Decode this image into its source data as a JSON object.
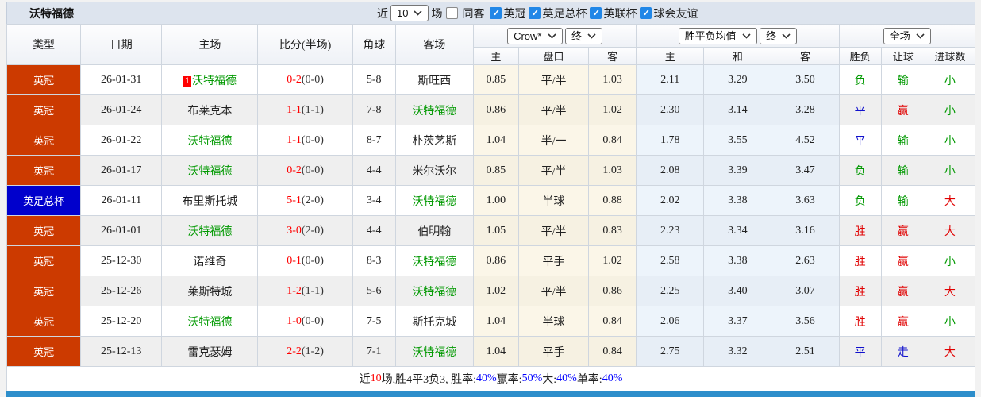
{
  "title": "沃特福德",
  "top_controls": {
    "recent_label": "近",
    "recent_value": "10",
    "matches_label": "场",
    "same_away": {
      "label": "同客",
      "checked": false
    },
    "filters": [
      {
        "label": "英冠",
        "checked": true
      },
      {
        "label": "英足总杯",
        "checked": true
      },
      {
        "label": "英联杯",
        "checked": true
      },
      {
        "label": "球会友谊",
        "checked": true
      }
    ]
  },
  "colors": {
    "league_red": "#cc3a00",
    "league_blue": "#0000cc",
    "team_green": "#009900",
    "score_red": "#ff0000",
    "result_win_red": "#e00000",
    "result_draw_blue": "#1111cc",
    "result_lose_green": "#009900",
    "percent_blue": "#0000ff",
    "checkbox_blue": "#2187e7",
    "bottom_bar": "#2d8ecb",
    "handicap_bg": "#fbf6e8",
    "avg_bg": "#edf4fb"
  },
  "result_color_map": {
    "胜": "result_win_red",
    "赢": "result_win_red",
    "大": "result_win_red",
    "平": "result_draw_blue",
    "走": "result_draw_blue",
    "负": "result_lose_green",
    "输": "result_lose_green",
    "小": "result_lose_green"
  },
  "table": {
    "left_headers": [
      "类型",
      "日期",
      "主场",
      "比分(半场)",
      "角球",
      "客场"
    ],
    "dropdowns": {
      "company": "Crow*",
      "stage1": "终",
      "avg_type": "胜平负均值",
      "stage2": "终",
      "scope": "全场"
    },
    "sub_headers": [
      "主",
      "盘口",
      "客",
      "主",
      "和",
      "客",
      "胜负",
      "让球",
      "进球数"
    ],
    "rows": [
      {
        "league": "英冠",
        "league_type": "red",
        "date": "26-01-31",
        "home": "沃特福德",
        "home_is_team": true,
        "home_rank": "1",
        "score": "0-2",
        "half": "(0-0)",
        "corners": "5-8",
        "away": "斯旺西",
        "away_is_team": false,
        "handicap": [
          "0.85",
          "平/半",
          "1.03"
        ],
        "avg": [
          "2.11",
          "3.29",
          "3.50"
        ],
        "results": [
          "负",
          "输",
          "小"
        ]
      },
      {
        "league": "英冠",
        "league_type": "red",
        "date": "26-01-24",
        "home": "布莱克本",
        "home_is_team": false,
        "home_rank": "",
        "score": "1-1",
        "half": "(1-1)",
        "corners": "7-8",
        "away": "沃特福德",
        "away_is_team": true,
        "handicap": [
          "0.86",
          "平/半",
          "1.02"
        ],
        "avg": [
          "2.30",
          "3.14",
          "3.28"
        ],
        "results": [
          "平",
          "赢",
          "小"
        ]
      },
      {
        "league": "英冠",
        "league_type": "red",
        "date": "26-01-22",
        "home": "沃特福德",
        "home_is_team": true,
        "home_rank": "",
        "score": "1-1",
        "half": "(0-0)",
        "corners": "8-7",
        "away": "朴茨茅斯",
        "away_is_team": false,
        "handicap": [
          "1.04",
          "半/一",
          "0.84"
        ],
        "avg": [
          "1.78",
          "3.55",
          "4.52"
        ],
        "results": [
          "平",
          "输",
          "小"
        ]
      },
      {
        "league": "英冠",
        "league_type": "red",
        "date": "26-01-17",
        "home": "沃特福德",
        "home_is_team": true,
        "home_rank": "",
        "score": "0-2",
        "half": "(0-0)",
        "corners": "4-4",
        "away": "米尔沃尔",
        "away_is_team": false,
        "handicap": [
          "0.85",
          "平/半",
          "1.03"
        ],
        "avg": [
          "2.08",
          "3.39",
          "3.47"
        ],
        "results": [
          "负",
          "输",
          "小"
        ]
      },
      {
        "league": "英足总杯",
        "league_type": "blue",
        "date": "26-01-11",
        "home": "布里斯托城",
        "home_is_team": false,
        "home_rank": "",
        "score": "5-1",
        "half": "(2-0)",
        "corners": "3-4",
        "away": "沃特福德",
        "away_is_team": true,
        "handicap": [
          "1.00",
          "半球",
          "0.88"
        ],
        "avg": [
          "2.02",
          "3.38",
          "3.63"
        ],
        "results": [
          "负",
          "输",
          "大"
        ]
      },
      {
        "league": "英冠",
        "league_type": "red",
        "date": "26-01-01",
        "home": "沃特福德",
        "home_is_team": true,
        "home_rank": "",
        "score": "3-0",
        "half": "(2-0)",
        "corners": "4-4",
        "away": "伯明翰",
        "away_is_team": false,
        "handicap": [
          "1.05",
          "平/半",
          "0.83"
        ],
        "avg": [
          "2.23",
          "3.34",
          "3.16"
        ],
        "results": [
          "胜",
          "赢",
          "大"
        ]
      },
      {
        "league": "英冠",
        "league_type": "red",
        "date": "25-12-30",
        "home": "诺维奇",
        "home_is_team": false,
        "home_rank": "",
        "score": "0-1",
        "half": "(0-0)",
        "corners": "8-3",
        "away": "沃特福德",
        "away_is_team": true,
        "handicap": [
          "0.86",
          "平手",
          "1.02"
        ],
        "avg": [
          "2.58",
          "3.38",
          "2.63"
        ],
        "results": [
          "胜",
          "赢",
          "小"
        ]
      },
      {
        "league": "英冠",
        "league_type": "red",
        "date": "25-12-26",
        "home": "莱斯特城",
        "home_is_team": false,
        "home_rank": "",
        "score": "1-2",
        "half": "(1-1)",
        "corners": "5-6",
        "away": "沃特福德",
        "away_is_team": true,
        "handicap": [
          "1.02",
          "平/半",
          "0.86"
        ],
        "avg": [
          "2.25",
          "3.40",
          "3.07"
        ],
        "results": [
          "胜",
          "赢",
          "大"
        ]
      },
      {
        "league": "英冠",
        "league_type": "red",
        "date": "25-12-20",
        "home": "沃特福德",
        "home_is_team": true,
        "home_rank": "",
        "score": "1-0",
        "half": "(0-0)",
        "corners": "7-5",
        "away": "斯托克城",
        "away_is_team": false,
        "handicap": [
          "1.04",
          "半球",
          "0.84"
        ],
        "avg": [
          "2.06",
          "3.37",
          "3.56"
        ],
        "results": [
          "胜",
          "赢",
          "小"
        ]
      },
      {
        "league": "英冠",
        "league_type": "red",
        "date": "25-12-13",
        "home": "雷克瑟姆",
        "home_is_team": false,
        "home_rank": "",
        "score": "2-2",
        "half": "(1-2)",
        "corners": "7-1",
        "away": "沃特福德",
        "away_is_team": true,
        "handicap": [
          "1.04",
          "平手",
          "0.84"
        ],
        "avg": [
          "2.75",
          "3.32",
          "2.51"
        ],
        "results": [
          "平",
          "走",
          "大"
        ]
      }
    ]
  },
  "footer": {
    "segments": [
      {
        "text": "近",
        "color": "default"
      },
      {
        "text": "10",
        "color": "red"
      },
      {
        "text": "场,胜4平3负3, 胜率:",
        "color": "default"
      },
      {
        "text": "40%",
        "color": "blue"
      },
      {
        "text": " 赢率:",
        "color": "default"
      },
      {
        "text": "50%",
        "color": "blue"
      },
      {
        "text": " 大:",
        "color": "default"
      },
      {
        "text": "40%",
        "color": "blue"
      },
      {
        "text": " 单率:",
        "color": "default"
      },
      {
        "text": "40%",
        "color": "blue"
      }
    ]
  }
}
